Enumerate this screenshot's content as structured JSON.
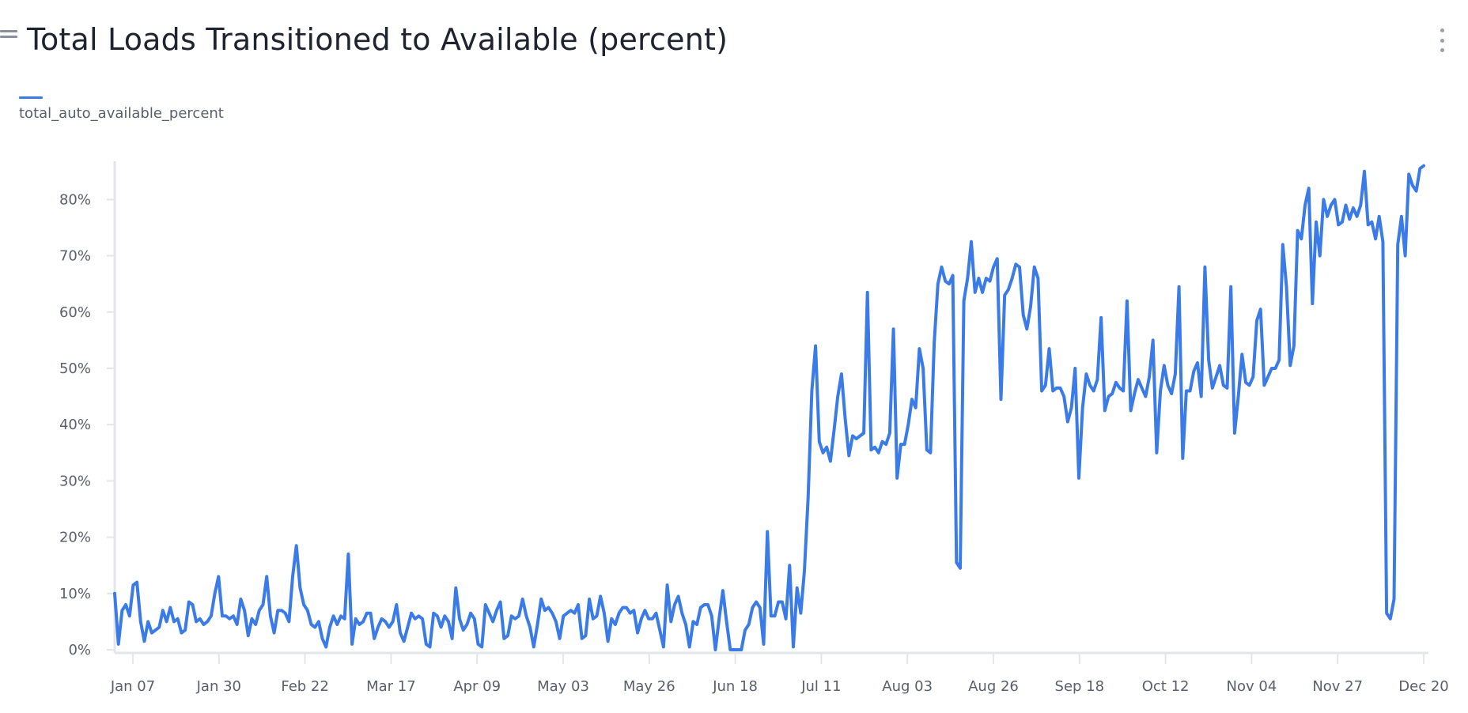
{
  "header": {
    "title": "Total Loads Transitioned to Available (percent)"
  },
  "legend": {
    "items": [
      {
        "label": "total_auto_available_percent",
        "color": "#3b7be8"
      }
    ]
  },
  "chart_data": {
    "type": "line",
    "title": "Total Loads Transitioned to Available (percent)",
    "xlabel": "",
    "ylabel": "",
    "ylim": [
      0,
      86
    ],
    "y_ticks": [
      0,
      10,
      20,
      30,
      40,
      50,
      60,
      70,
      80
    ],
    "y_tick_labels": [
      "0%",
      "10%",
      "20%",
      "30%",
      "40%",
      "50%",
      "60%",
      "70%",
      "80%"
    ],
    "x_tick_labels": [
      "Jan 07",
      "Jan 30",
      "Feb 22",
      "Mar 17",
      "Apr 09",
      "May 03",
      "May 26",
      "Jun 18",
      "Jul 11",
      "Aug 03",
      "Aug 26",
      "Sep 18",
      "Oct 12",
      "Nov 04",
      "Nov 27",
      "Dec 20"
    ],
    "grid": false,
    "legend_position": "top-left",
    "series": [
      {
        "name": "total_auto_available_percent",
        "color": "#3b7be8",
        "values": [
          10,
          1,
          7,
          8,
          6,
          11.5,
          12,
          5,
          1.5,
          5,
          3,
          3.5,
          4,
          7,
          5,
          7.5,
          5,
          5.5,
          3,
          3.5,
          8.5,
          8,
          5,
          5.5,
          4.5,
          5,
          6,
          10,
          13,
          6,
          6,
          5.5,
          6,
          4.5,
          9,
          7,
          2.5,
          5.5,
          4.5,
          7,
          8,
          13,
          6,
          3,
          7,
          7,
          6.5,
          5,
          13,
          18.5,
          11,
          8,
          7,
          4.5,
          4,
          5,
          2,
          0.5,
          4,
          6,
          4.5,
          6,
          5.5,
          17,
          1,
          5.5,
          4.5,
          5,
          6.5,
          6.5,
          2,
          4,
          5.5,
          5,
          4,
          5,
          8,
          3,
          1.5,
          4,
          6.5,
          5.5,
          6,
          5.5,
          1,
          0.5,
          6.5,
          6,
          4,
          6,
          5,
          2,
          11,
          5.5,
          3.5,
          4.5,
          6.5,
          5.5,
          1,
          0.5,
          8,
          6.5,
          5,
          7,
          8.5,
          2,
          2.5,
          6,
          5.5,
          6,
          9,
          6,
          4,
          0.5,
          4.5,
          9,
          7,
          7.5,
          6.5,
          5,
          2,
          6,
          6.5,
          7,
          6.5,
          8,
          2,
          2.5,
          9,
          5.5,
          6,
          9.5,
          6.5,
          1.5,
          5.5,
          4.5,
          6.5,
          7.5,
          7.5,
          6.5,
          7,
          3,
          5.5,
          7,
          5.5,
          5.5,
          6.5,
          3.5,
          0.5,
          11.5,
          5,
          8,
          9.5,
          6.5,
          4.5,
          0.5,
          5,
          4.5,
          7.5,
          8,
          8,
          6,
          0,
          5.5,
          10.5,
          5,
          0,
          0,
          0,
          0,
          3.5,
          4.5,
          7.5,
          8.5,
          7.5,
          1,
          21,
          6,
          6,
          8.5,
          8.5,
          5.5,
          15,
          0.5,
          11,
          6.5,
          14,
          27,
          46,
          54,
          37,
          35,
          36,
          33.5,
          39,
          45,
          49,
          41,
          34.5,
          38,
          37.5,
          38,
          38.5,
          63.5,
          35.5,
          36,
          35,
          37,
          36.5,
          38.5,
          57,
          30.5,
          36.5,
          36.5,
          40,
          44.5,
          43,
          53.5,
          50,
          35.5,
          35,
          54.5,
          65,
          68,
          65.5,
          65,
          66.5,
          15.5,
          14.5,
          62,
          66,
          72.5,
          63.5,
          66,
          63.5,
          66,
          65.5,
          68,
          69.5,
          44.5,
          63,
          64,
          66,
          68.5,
          68,
          59.5,
          57,
          61,
          68,
          66,
          46,
          47,
          53.5,
          46,
          46.5,
          46.5,
          45,
          40.5,
          43,
          50,
          30.5,
          43,
          49,
          47,
          46,
          48,
          59,
          42.5,
          45,
          45.5,
          47.5,
          46.5,
          46,
          62,
          42.5,
          45.5,
          48,
          46.5,
          45,
          48.5,
          55,
          35,
          46,
          50.5,
          47,
          45.5,
          49,
          64.5,
          34,
          46,
          46,
          49.5,
          51,
          45,
          68,
          51.5,
          46.5,
          48.5,
          50.5,
          47,
          46.5,
          64.5,
          38.5,
          45,
          52.5,
          47.5,
          47,
          48.5,
          58.5,
          60.5,
          47,
          48.5,
          50,
          50,
          51.5,
          72,
          64.5,
          50.5,
          54,
          74.5,
          73,
          79,
          82,
          61.5,
          76,
          70,
          80,
          77,
          79,
          80,
          75.5,
          76,
          79,
          76.5,
          78.5,
          77,
          79,
          85,
          75.5,
          76,
          73,
          77,
          72.5,
          6.5,
          5.5,
          9,
          72,
          77,
          70,
          84.5,
          82.5,
          81.5,
          85.5,
          86
        ]
      }
    ]
  }
}
